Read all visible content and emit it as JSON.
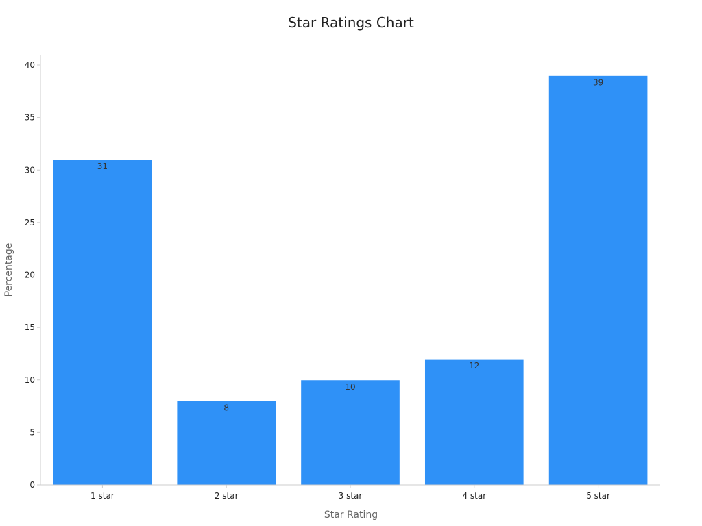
{
  "chart_data": {
    "type": "bar",
    "title": "Star Ratings Chart",
    "xlabel": "Star Rating",
    "ylabel": "Percentage",
    "categories": [
      "1 star",
      "2 star",
      "3 star",
      "4 star",
      "5 star"
    ],
    "values": [
      31,
      8,
      10,
      12,
      39
    ],
    "ylim": [
      0,
      40
    ],
    "yticks": [
      0,
      5,
      10,
      15,
      20,
      25,
      30,
      35,
      40
    ],
    "grid": false,
    "legend": "none",
    "colors": {
      "bar": "#2f91f7",
      "bar_edge": "#ffffff",
      "axis": "#cccccc",
      "tick_text": "#222222",
      "label_text": "#666666",
      "title_text": "#222222",
      "data_label_text": "#333333"
    }
  }
}
